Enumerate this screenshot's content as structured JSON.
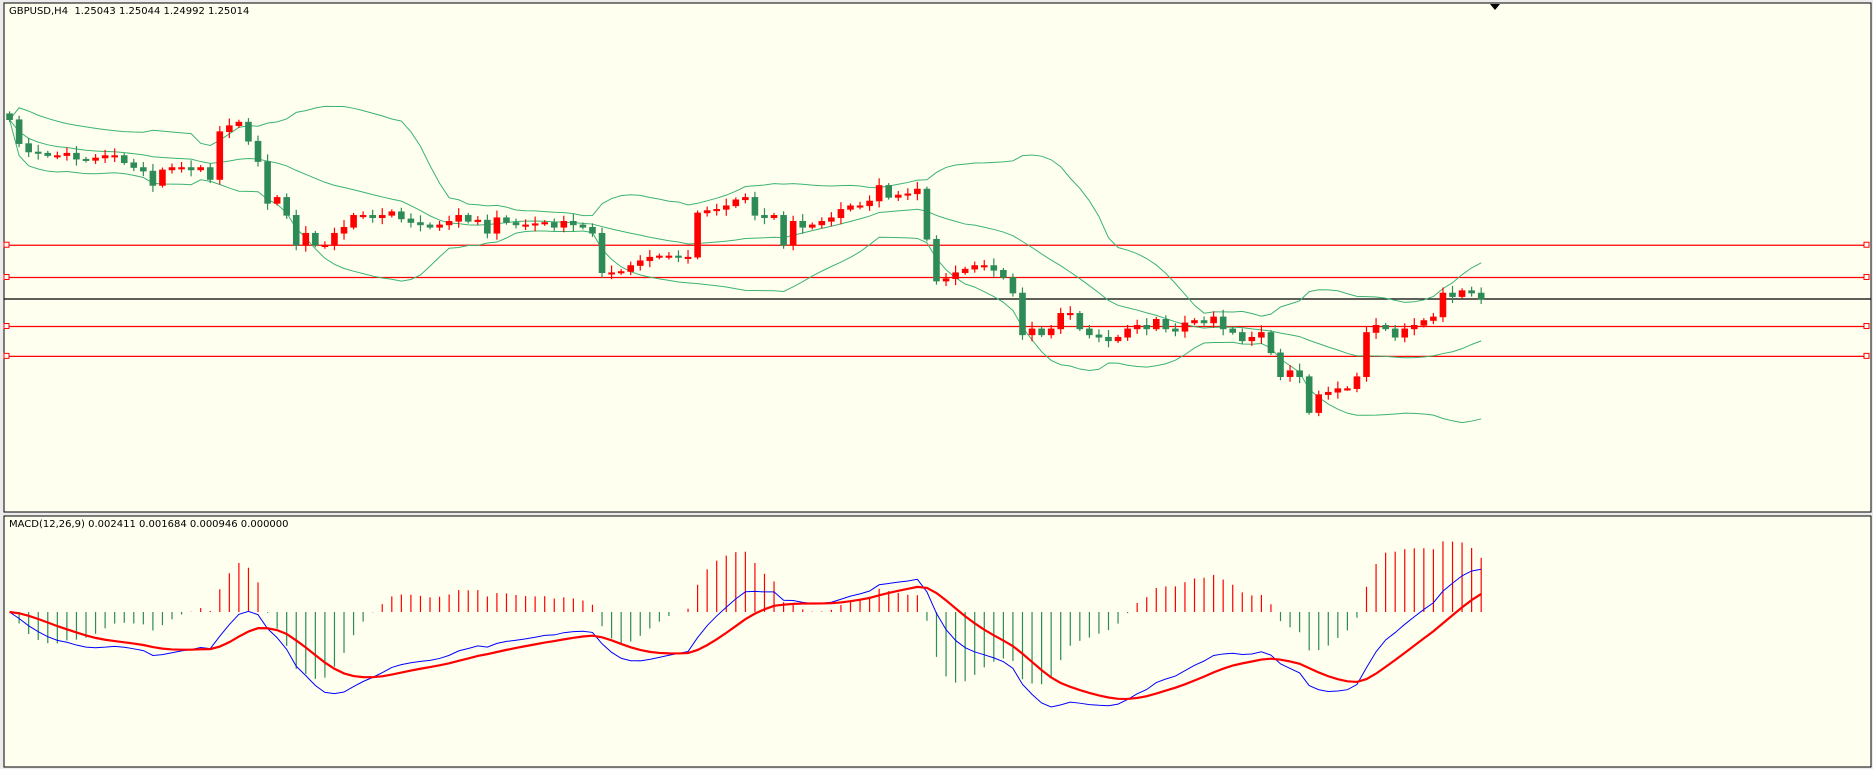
{
  "header": {
    "symbol_label": "GBPUSD,H4",
    "ohlc_label": "1.25043 1.25044 1.24992 1.25014"
  },
  "macd_panel": {
    "label": "MACD(12,26,9) 0.002411 0.001684 0.000946 0.000000"
  },
  "colors": {
    "background": "#FFFFF0",
    "bull_candle": "#FF0000",
    "bear_candle": "#2E8B57",
    "bollinger": "#3CB371",
    "hline": "#FF0000",
    "bid_line": "#000000",
    "macd_line": "#0000FF",
    "signal_line": "#FF0000",
    "hist_pos": "#FF0000",
    "hist_neg": "#2E8B57"
  },
  "chart_data": [
    {
      "type": "candlestick",
      "symbol": "GBPUSD",
      "timeframe": "H4",
      "bid": 1.25014,
      "indicators": [
        "Bollinger Bands"
      ],
      "horizontal_lines": [
        1.25284,
        1.25122,
        1.24876,
        1.24726
      ],
      "closes_y_units": "price",
      "closes": [
        1.25914,
        1.25794,
        1.25752,
        1.25746,
        1.25734,
        1.25734,
        1.25746,
        1.25716,
        1.2571,
        1.25722,
        1.25734,
        1.25734,
        1.25698,
        1.25674,
        1.25656,
        1.25584,
        1.25662,
        1.25674,
        1.25674,
        1.25662,
        1.25674,
        1.25614,
        1.25854,
        1.25884,
        1.25902,
        1.25806,
        1.25704,
        1.25494,
        1.25524,
        1.25434,
        1.25284,
        1.25344,
        1.25284,
        1.25284,
        1.25344,
        1.25374,
        1.25434,
        1.25434,
        1.25422,
        1.25434,
        1.25452,
        1.25416,
        1.25398,
        1.25386,
        1.25374,
        1.25386,
        1.25404,
        1.25434,
        1.25404,
        1.2541,
        1.25344,
        1.25422,
        1.25398,
        1.25386,
        1.25386,
        1.25392,
        1.25398,
        1.25374,
        1.25404,
        1.25386,
        1.25374,
        1.25344,
        1.25146,
        1.25146,
        1.25152,
        1.25182,
        1.25206,
        1.25224,
        1.2523,
        1.2523,
        1.25224,
        1.25224,
        1.25446,
        1.25458,
        1.25464,
        1.25482,
        1.25512,
        1.25524,
        1.25434,
        1.25422,
        1.25434,
        1.25284,
        1.25404,
        1.25374,
        1.25386,
        1.25404,
        1.25422,
        1.25464,
        1.25482,
        1.25482,
        1.25506,
        1.25584,
        1.25524,
        1.25536,
        1.25542,
        1.25566,
        1.25314,
        1.25104,
        1.25116,
        1.25146,
        1.25164,
        1.25182,
        1.25182,
        1.25158,
        1.25122,
        1.25044,
        1.24834,
        1.24864,
        1.24834,
        1.24864,
        1.24942,
        1.24942,
        1.24864,
        1.24834,
        1.24822,
        1.24804,
        1.24822,
        1.24864,
        1.24882,
        1.24864,
        1.24912,
        1.24864,
        1.24852,
        1.24894,
        1.24906,
        1.24894,
        1.24924,
        1.24864,
        1.24846,
        1.24804,
        1.24822,
        1.24846,
        1.24744,
        1.24624,
        1.24654,
        1.24624,
        1.24444,
        1.24534,
        1.24546,
        1.24564,
        1.24564,
        1.24624,
        1.24846,
        1.24882,
        1.24864,
        1.24822,
        1.24864,
        1.24882,
        1.24906,
        1.24924,
        1.25044,
        1.25026,
        1.25056,
        1.25044,
        1.25014
      ]
    },
    {
      "type": "line",
      "name": "MACD(12,26,9)",
      "values_shown": [
        0.002411,
        0.001684,
        0.000946,
        0.0
      ],
      "series": [
        "MACD",
        "Signal",
        "Histogram"
      ]
    }
  ]
}
